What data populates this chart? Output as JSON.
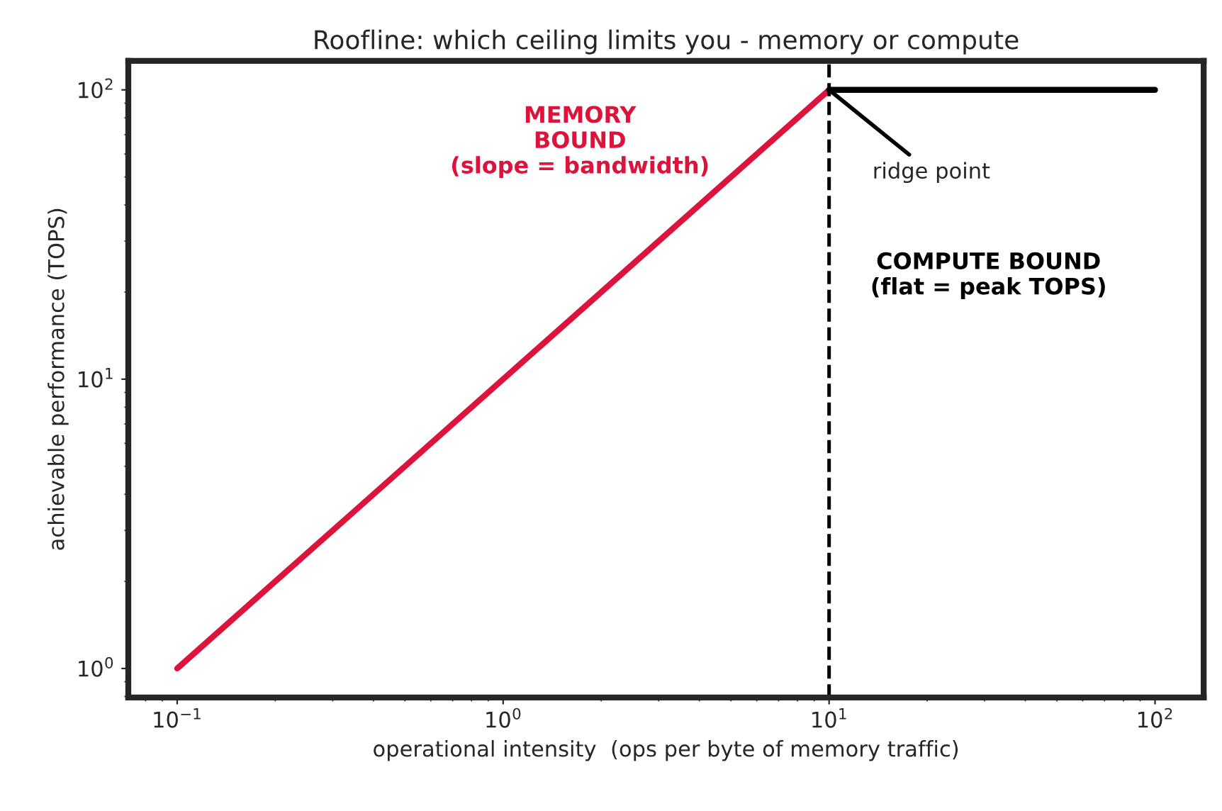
{
  "chart_data": {
    "type": "line",
    "title": "Roofline: which ceiling limits you - memory or compute",
    "xlabel": "operational intensity  (ops per byte of memory traffic)",
    "ylabel": "achievable performance (TOPS)",
    "series": [
      {
        "color": "#dc143c",
        "x": [
          0.1,
          10
        ],
        "values": [
          1,
          100
        ]
      },
      {
        "color": "#000000",
        "x": [
          10,
          100
        ],
        "values": [
          100,
          100
        ]
      }
    ],
    "log": "xy",
    "xlim": [
      0.0708,
      141
    ],
    "ylim": [
      0.794,
      126
    ],
    "xticks": [
      {
        "value": 0.1,
        "label": "10$^{−1}$"
      },
      {
        "value": 1,
        "label": "10$^{0}$"
      },
      {
        "value": 10,
        "label": "10$^{1}$"
      },
      {
        "value": 100,
        "label": "10$^{2}$"
      }
    ],
    "yticks": [
      {
        "value": 1,
        "label": "10$^{0}$"
      },
      {
        "value": 10,
        "label": "10$^{1}$"
      },
      {
        "value": 100,
        "label": "10$^{2}$"
      }
    ],
    "ref_lines": [
      {
        "axis": "x",
        "value": 10,
        "label": null,
        "color": "#000000",
        "line_style": "dashed"
      }
    ],
    "annotations": [
      "MEMORY\nBOUND\n(slope = bandwidth)",
      "COMPUTE BOUND\n(flat = peak TOPS)",
      {
        "text": "ridge point",
        "x": 10,
        "y": 100
      }
    ],
    "grid": false,
    "legend": false,
    "marker": "none",
    "line_style": "solid"
  }
}
